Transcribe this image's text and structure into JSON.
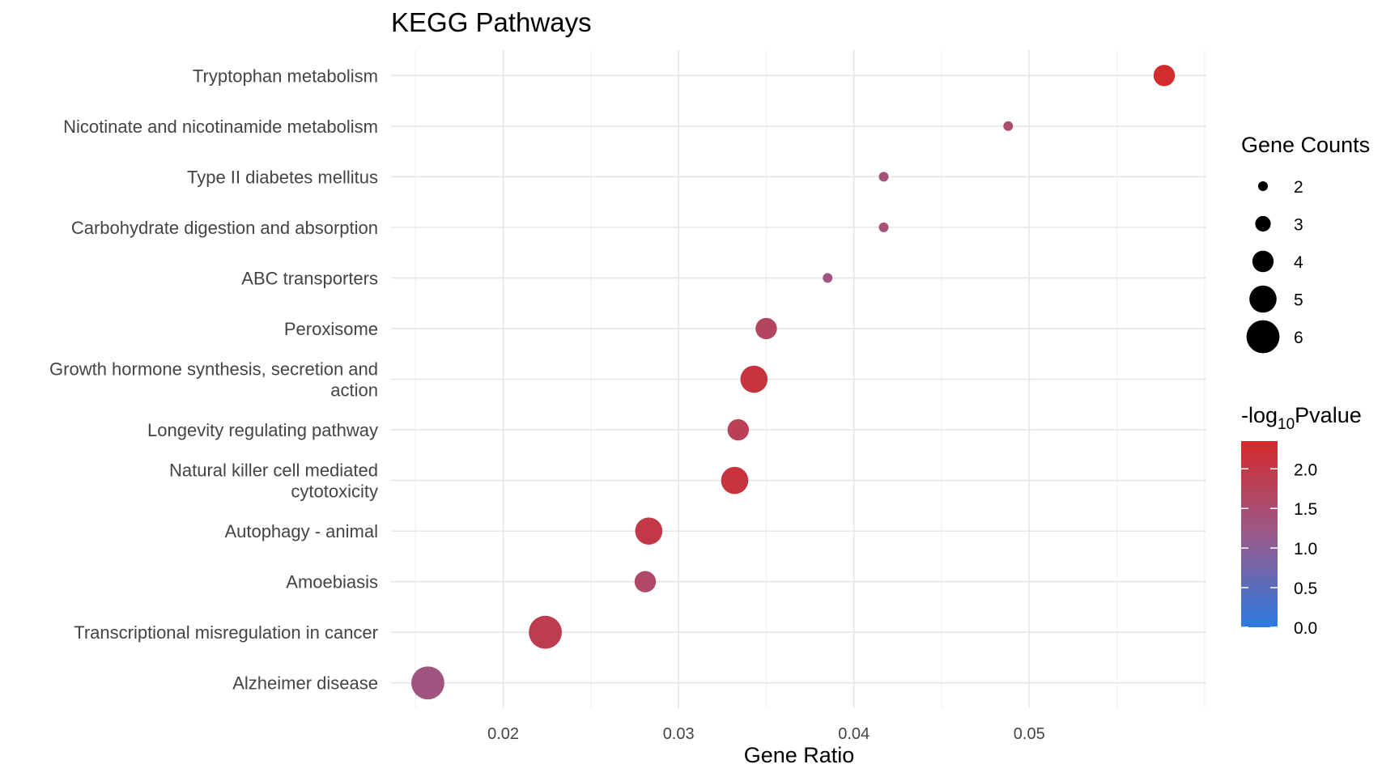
{
  "chart_data": {
    "type": "scatter",
    "title": "KEGG Pathways",
    "xlabel": "Gene Ratio",
    "ylabel": "",
    "xlim": [
      0.0136,
      0.0601
    ],
    "x_ticks": [
      "0.02",
      "0.03",
      "0.04",
      "0.05"
    ],
    "x_tick_values": [
      0.02,
      0.03,
      0.04,
      0.05
    ],
    "grid": true,
    "points": [
      {
        "pathway": "Tryptophan metabolism",
        "label_lines": [
          "Tryptophan metabolism"
        ],
        "gene_ratio": 0.0577,
        "count": 4,
        "neg_log10_p": 2.3
      },
      {
        "pathway": "Nicotinate and nicotinamide metabolism",
        "label_lines": [
          "Nicotinate and nicotinamide metabolism"
        ],
        "gene_ratio": 0.0488,
        "count": 2,
        "neg_log10_p": 1.5
      },
      {
        "pathway": "Type II diabetes mellitus",
        "label_lines": [
          "Type II diabetes mellitus"
        ],
        "gene_ratio": 0.0417,
        "count": 2,
        "neg_log10_p": 1.4
      },
      {
        "pathway": "Carbohydrate digestion and absorption",
        "label_lines": [
          "Carbohydrate digestion and absorption"
        ],
        "gene_ratio": 0.0417,
        "count": 2,
        "neg_log10_p": 1.4
      },
      {
        "pathway": "ABC transporters",
        "label_lines": [
          "ABC transporters"
        ],
        "gene_ratio": 0.0385,
        "count": 2,
        "neg_log10_p": 1.3
      },
      {
        "pathway": "Peroxisome",
        "label_lines": [
          "Peroxisome"
        ],
        "gene_ratio": 0.035,
        "count": 4,
        "neg_log10_p": 1.7
      },
      {
        "pathway": "Growth hormone synthesis, secretion and action",
        "label_lines": [
          "Growth hormone synthesis, secretion and",
          "action"
        ],
        "gene_ratio": 0.0343,
        "count": 5,
        "neg_log10_p": 2.1
      },
      {
        "pathway": "Longevity regulating pathway",
        "label_lines": [
          "Longevity regulating pathway"
        ],
        "gene_ratio": 0.0334,
        "count": 4,
        "neg_log10_p": 1.8
      },
      {
        "pathway": "Natural killer cell mediated cytotoxicity",
        "label_lines": [
          "Natural killer cell mediated",
          "cytotoxicity"
        ],
        "gene_ratio": 0.0332,
        "count": 5,
        "neg_log10_p": 2.1
      },
      {
        "pathway": "Autophagy - animal",
        "label_lines": [
          "Autophagy - animal"
        ],
        "gene_ratio": 0.0283,
        "count": 5,
        "neg_log10_p": 2.0
      },
      {
        "pathway": "Amoebiasis",
        "label_lines": [
          "Amoebiasis"
        ],
        "gene_ratio": 0.0281,
        "count": 4,
        "neg_log10_p": 1.6
      },
      {
        "pathway": "Transcriptional misregulation in cancer",
        "label_lines": [
          "Transcriptional misregulation in cancer"
        ],
        "gene_ratio": 0.0224,
        "count": 6,
        "neg_log10_p": 1.9
      },
      {
        "pathway": "Alzheimer disease",
        "label_lines": [
          "Alzheimer disease"
        ],
        "gene_ratio": 0.0157,
        "count": 6,
        "neg_log10_p": 1.3
      }
    ],
    "size_legend": {
      "title": "Gene Counts",
      "values": [
        2,
        3,
        4,
        5,
        6
      ],
      "labels": [
        "2",
        "3",
        "4",
        "5",
        "6"
      ]
    },
    "color_legend": {
      "title_prefix": "-log",
      "title_subscript": "10",
      "title_suffix": "Pvalue",
      "min": 0.0,
      "max": 2.35,
      "ticks": [
        0.0,
        0.5,
        1.0,
        1.5,
        2.0
      ],
      "tick_labels": [
        "0.0",
        "0.5",
        "1.0",
        "1.5",
        "2.0"
      ],
      "color_low": "#2b7ae0",
      "color_mid": "#9a5a8a",
      "color_high": "#d42a2a"
    },
    "legend_position": "right"
  }
}
